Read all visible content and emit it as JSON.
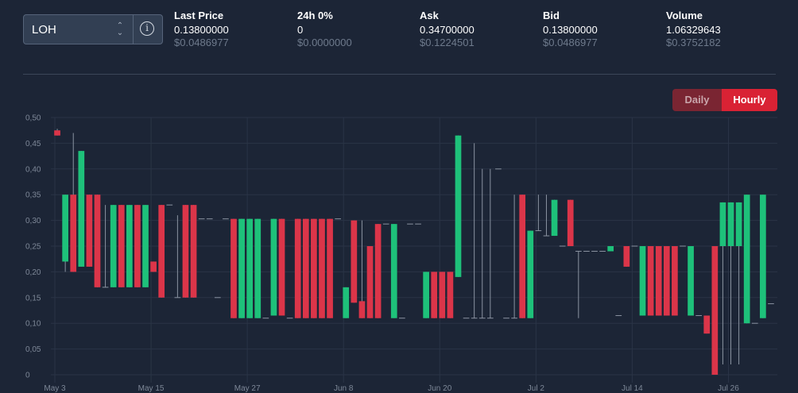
{
  "selector": {
    "pair": "LOH"
  },
  "stats": [
    {
      "label": "Last Price",
      "value": "0.13800000",
      "usd": "$0.0486977"
    },
    {
      "label": "24h 0%",
      "value": "0",
      "usd": "$0.0000000"
    },
    {
      "label": "Ask",
      "value": "0.34700000",
      "usd": "$0.1224501"
    },
    {
      "label": "Bid",
      "value": "0.13800000",
      "usd": "$0.0486977"
    },
    {
      "label": "Volume",
      "value": "1.06329643",
      "usd": "$0.3752182"
    }
  ],
  "toggle": {
    "daily": "Daily",
    "hourly": "Hourly"
  },
  "colors": {
    "up": "#1ec17a",
    "down": "#db3549",
    "grid": "#2a3446",
    "wick": "#8a93a1"
  },
  "chart_data": {
    "type": "candlestick",
    "y_ticks": [
      "0,50",
      "0,45",
      "0,40",
      "0,35",
      "0,30",
      "0,25",
      "0,20",
      "0,15",
      "0,10",
      "0,05",
      "0"
    ],
    "ylim": [
      0,
      0.5
    ],
    "x_labels": [
      {
        "label": "May 3",
        "index": 0
      },
      {
        "label": "May 15",
        "index": 12
      },
      {
        "label": "May 27",
        "index": 24
      },
      {
        "label": "Jun 8",
        "index": 36
      },
      {
        "label": "Jun 20",
        "index": 48
      },
      {
        "label": "Jul 2",
        "index": 60
      },
      {
        "label": "Jul 14",
        "index": 72
      },
      {
        "label": "Jul 26",
        "index": 84
      }
    ],
    "candles": [
      [
        0.475,
        0.478,
        0.465,
        0.465
      ],
      [
        0.22,
        0.35,
        0.2,
        0.35
      ],
      [
        0.35,
        0.47,
        0.2,
        0.2
      ],
      [
        0.21,
        0.435,
        0.21,
        0.435
      ],
      [
        0.35,
        0.35,
        0.21,
        0.21
      ],
      [
        0.35,
        0.35,
        0.17,
        0.17
      ],
      [
        0.17,
        0.33,
        0.17,
        0.17
      ],
      [
        0.17,
        0.33,
        0.17,
        0.33
      ],
      [
        0.33,
        0.33,
        0.17,
        0.17
      ],
      [
        0.17,
        0.33,
        0.17,
        0.33
      ],
      [
        0.33,
        0.33,
        0.17,
        0.17
      ],
      [
        0.17,
        0.33,
        0.17,
        0.33
      ],
      [
        0.22,
        0.22,
        0.2,
        0.2
      ],
      [
        0.33,
        0.33,
        0.15,
        0.15
      ],
      [
        0.33,
        0.33,
        0.33,
        0.33
      ],
      [
        0.15,
        0.31,
        0.15,
        0.15
      ],
      [
        0.33,
        0.33,
        0.15,
        0.15
      ],
      [
        0.33,
        0.33,
        0.15,
        0.15
      ],
      [
        0.303,
        0.303,
        0.303,
        0.303
      ],
      [
        0.303,
        0.303,
        0.303,
        0.303
      ],
      [
        0.15,
        0.15,
        0.15,
        0.15
      ],
      [
        0.303,
        0.303,
        0.303,
        0.303
      ],
      [
        0.303,
        0.303,
        0.11,
        0.11
      ],
      [
        0.11,
        0.303,
        0.11,
        0.303
      ],
      [
        0.11,
        0.303,
        0.11,
        0.303
      ],
      [
        0.11,
        0.303,
        0.11,
        0.303
      ],
      [
        0.11,
        0.11,
        0.11,
        0.11
      ],
      [
        0.115,
        0.303,
        0.115,
        0.303
      ],
      [
        0.303,
        0.303,
        0.115,
        0.115
      ],
      [
        0.11,
        0.11,
        0.11,
        0.11
      ],
      [
        0.303,
        0.303,
        0.11,
        0.11
      ],
      [
        0.303,
        0.303,
        0.11,
        0.11
      ],
      [
        0.303,
        0.303,
        0.11,
        0.11
      ],
      [
        0.303,
        0.303,
        0.11,
        0.11
      ],
      [
        0.303,
        0.303,
        0.11,
        0.11
      ],
      [
        0.303,
        0.303,
        0.303,
        0.303
      ],
      [
        0.11,
        0.17,
        0.11,
        0.17
      ],
      [
        0.3,
        0.3,
        0.14,
        0.14
      ],
      [
        0.143,
        0.3,
        0.11,
        0.11
      ],
      [
        0.25,
        0.25,
        0.11,
        0.11
      ],
      [
        0.293,
        0.293,
        0.11,
        0.11
      ],
      [
        0.293,
        0.293,
        0.293,
        0.293
      ],
      [
        0.11,
        0.293,
        0.11,
        0.293
      ],
      [
        0.11,
        0.11,
        0.11,
        0.11
      ],
      [
        0.293,
        0.293,
        0.293,
        0.293
      ],
      [
        0.293,
        0.293,
        0.293,
        0.293
      ],
      [
        0.11,
        0.2,
        0.11,
        0.2
      ],
      [
        0.2,
        0.2,
        0.11,
        0.11
      ],
      [
        0.2,
        0.2,
        0.11,
        0.11
      ],
      [
        0.2,
        0.2,
        0.11,
        0.11
      ],
      [
        0.19,
        0.465,
        0.19,
        0.465
      ],
      [
        0.11,
        0.11,
        0.11,
        0.11
      ],
      [
        0.11,
        0.45,
        0.11,
        0.11
      ],
      [
        0.11,
        0.4,
        0.11,
        0.11
      ],
      [
        0.11,
        0.4,
        0.11,
        0.11
      ],
      [
        0.4,
        0.4,
        0.4,
        0.4
      ],
      [
        0.11,
        0.11,
        0.11,
        0.11
      ],
      [
        0.11,
        0.35,
        0.11,
        0.11
      ],
      [
        0.35,
        0.35,
        0.11,
        0.11
      ],
      [
        0.11,
        0.28,
        0.11,
        0.28
      ],
      [
        0.28,
        0.35,
        0.28,
        0.28
      ],
      [
        0.27,
        0.35,
        0.27,
        0.27
      ],
      [
        0.27,
        0.34,
        0.27,
        0.34
      ],
      [
        0.25,
        0.25,
        0.25,
        0.25
      ],
      [
        0.34,
        0.34,
        0.25,
        0.25
      ],
      [
        0.24,
        0.24,
        0.11,
        0.24
      ],
      [
        0.24,
        0.24,
        0.24,
        0.24
      ],
      [
        0.24,
        0.24,
        0.24,
        0.24
      ],
      [
        0.24,
        0.24,
        0.24,
        0.24
      ],
      [
        0.24,
        0.25,
        0.24,
        0.25
      ],
      [
        0.115,
        0.115,
        0.115,
        0.115
      ],
      [
        0.25,
        0.25,
        0.21,
        0.21
      ],
      [
        0.25,
        0.25,
        0.25,
        0.25
      ],
      [
        0.115,
        0.25,
        0.115,
        0.25
      ],
      [
        0.25,
        0.25,
        0.115,
        0.115
      ],
      [
        0.25,
        0.25,
        0.115,
        0.115
      ],
      [
        0.25,
        0.25,
        0.115,
        0.115
      ],
      [
        0.25,
        0.25,
        0.115,
        0.115
      ],
      [
        0.25,
        0.25,
        0.25,
        0.25
      ],
      [
        0.115,
        0.25,
        0.115,
        0.25
      ],
      [
        0.115,
        0.115,
        0.115,
        0.115
      ],
      [
        0.115,
        0.115,
        0.08,
        0.08
      ],
      [
        0.25,
        0.25,
        0.0,
        0.0
      ],
      [
        0.25,
        0.335,
        0.02,
        0.335
      ],
      [
        0.25,
        0.335,
        0.02,
        0.335
      ],
      [
        0.25,
        0.335,
        0.02,
        0.335
      ],
      [
        0.1,
        0.35,
        0.1,
        0.35
      ],
      [
        0.1,
        0.1,
        0.1,
        0.1
      ],
      [
        0.11,
        0.35,
        0.11,
        0.35
      ],
      [
        0.138,
        0.138,
        0.138,
        0.138
      ]
    ]
  }
}
